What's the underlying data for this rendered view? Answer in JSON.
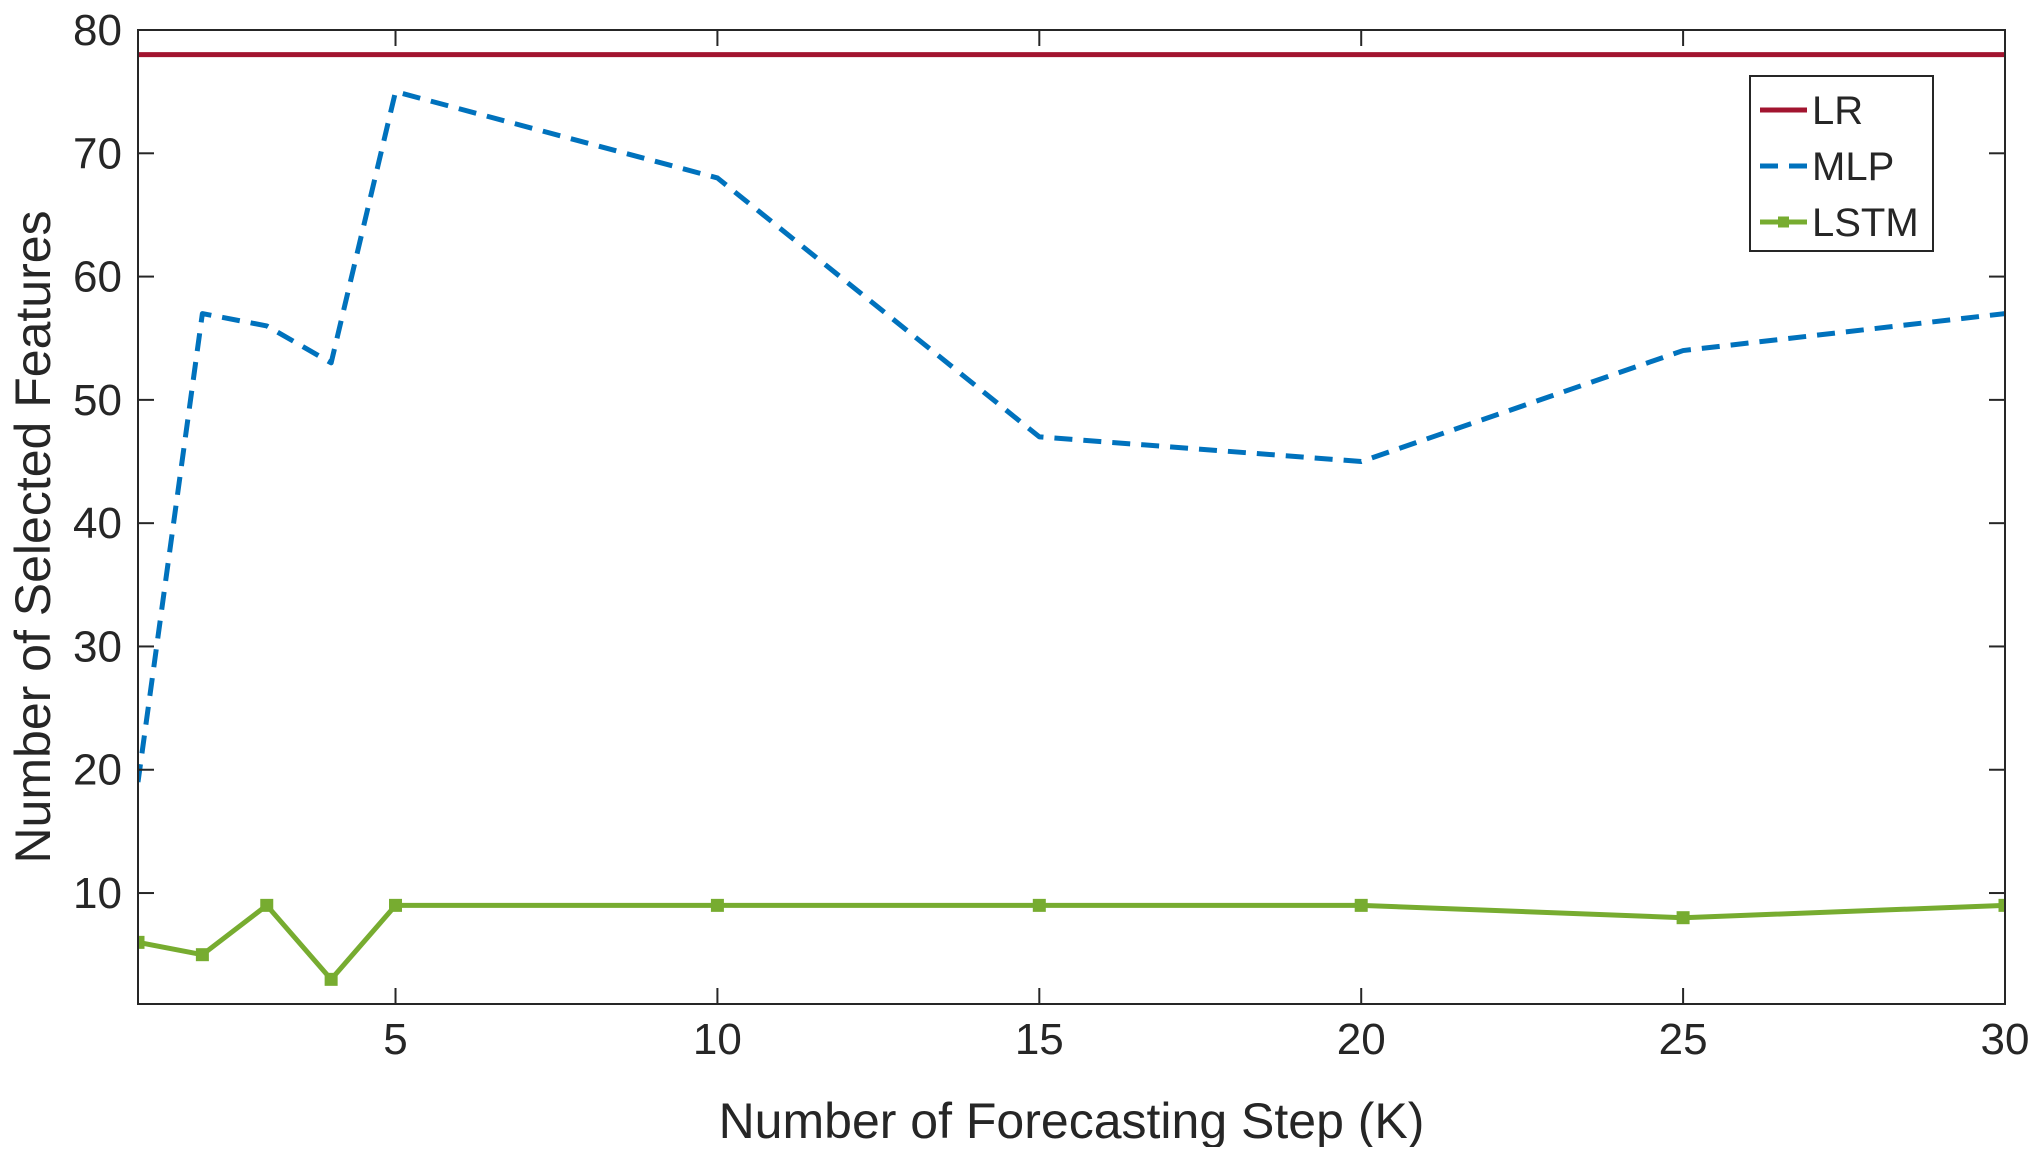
{
  "chart_data": {
    "type": "line",
    "title": "",
    "xlabel": "Number of Forecasting Step (K)",
    "ylabel": "Number of Selected Features",
    "xlim": [
      1,
      30
    ],
    "ylim": [
      1,
      80
    ],
    "xticks": [
      5,
      10,
      15,
      20,
      25,
      30
    ],
    "yticks": [
      10,
      20,
      30,
      40,
      50,
      60,
      70,
      80
    ],
    "grid": false,
    "legend_position": "top-right",
    "series": [
      {
        "name": "LR",
        "style": "solid",
        "color": "#A2142F",
        "marker": "none",
        "x": [
          1,
          30
        ],
        "y": [
          78,
          78
        ]
      },
      {
        "name": "MLP",
        "style": "dashed",
        "color": "#0072BD",
        "marker": "none",
        "x": [
          1,
          2,
          3,
          4,
          5,
          10,
          15,
          20,
          25,
          30
        ],
        "y": [
          19,
          57,
          56,
          53,
          75,
          68,
          47,
          45,
          54,
          57
        ]
      },
      {
        "name": "LSTM",
        "style": "solid",
        "color": "#77AC30",
        "marker": "square",
        "x": [
          1,
          2,
          3,
          4,
          5,
          10,
          15,
          20,
          25,
          30
        ],
        "y": [
          6,
          5,
          9,
          3,
          9,
          9,
          9,
          9,
          8,
          9
        ]
      }
    ]
  }
}
